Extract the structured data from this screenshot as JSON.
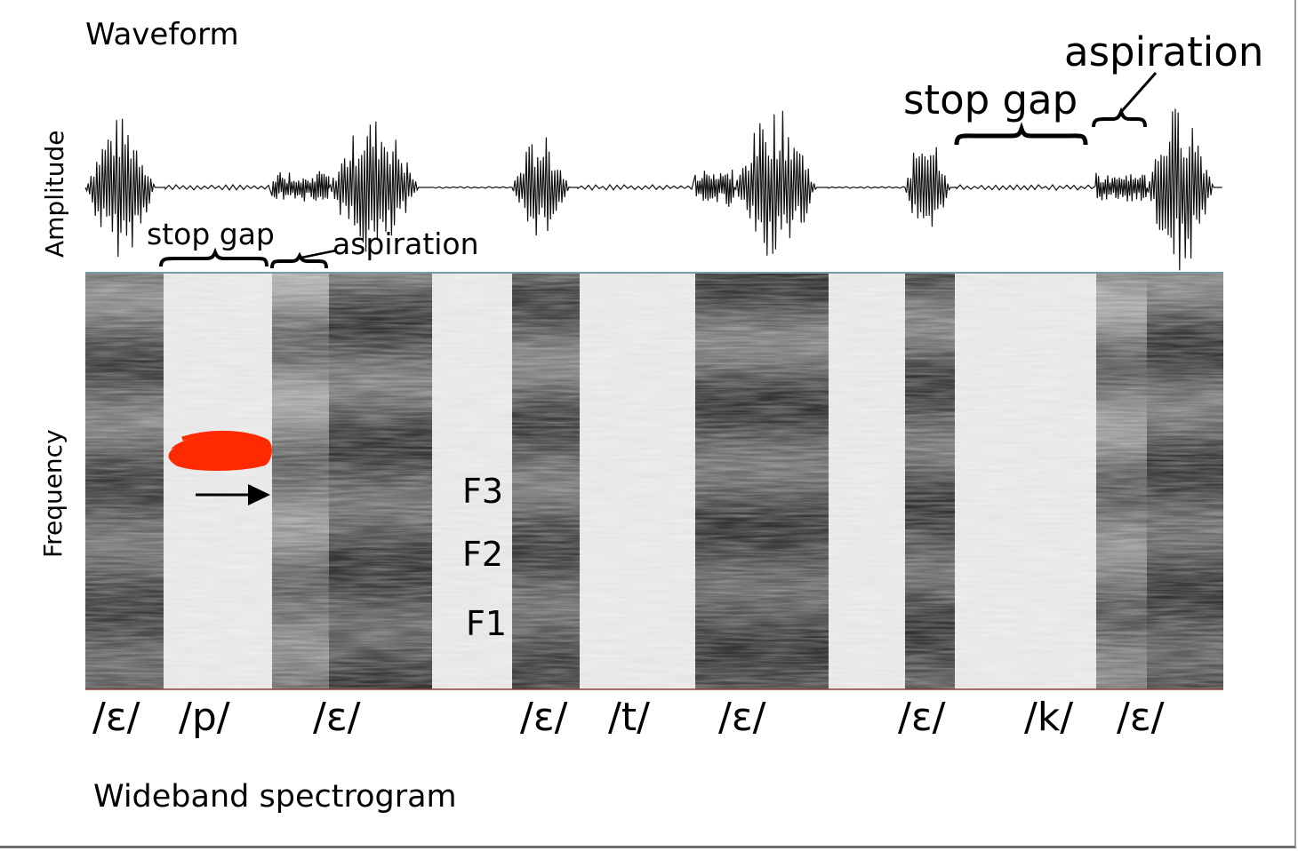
{
  "waveform_title": "Waveform",
  "spectrogram_title": "Wideband spectrogram",
  "axes": {
    "amplitude_label": "Amplitude",
    "frequency_label": "Frequency"
  },
  "annotations": {
    "stop_gap_small": "stop gap",
    "aspiration_small": "aspiration",
    "stop_gap_large": "stop gap",
    "aspiration_large": "aspiration"
  },
  "formants": {
    "f3": "F3",
    "f2": "F2",
    "f1": "F1"
  },
  "segments": [
    "/ε/",
    "/p/",
    "/ε/",
    "/ε/",
    "/t/",
    "/ε/",
    "/ε/",
    "/k/",
    "/ε/"
  ],
  "colors": {
    "ink": "#000000",
    "red_scribble": "#ff2a00",
    "panel_border": "#7a9ba3",
    "baseline": "#8b3a3a"
  }
}
